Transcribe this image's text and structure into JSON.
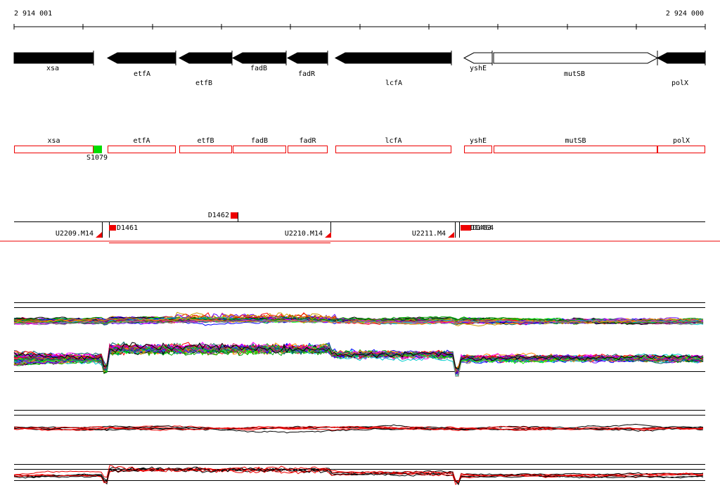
{
  "coords": {
    "start": "2 914 001",
    "end": "2 924 000"
  },
  "genes": [
    {
      "label": "xsa"
    },
    {
      "label": "etfA"
    },
    {
      "label": "etfB"
    },
    {
      "label": "fadB"
    },
    {
      "label": "fadR"
    },
    {
      "label": "lcfA"
    },
    {
      "label": "yshE"
    },
    {
      "label": "mutSB"
    },
    {
      "label": "polX"
    }
  ],
  "regions": [
    {
      "label": "xsa"
    },
    {
      "label": "etfA"
    },
    {
      "label": "etfB"
    },
    {
      "label": "fadB"
    },
    {
      "label": "fadR"
    },
    {
      "label": "lcfA"
    },
    {
      "label": "yshE"
    },
    {
      "label": "mutSB"
    },
    {
      "label": "polX"
    }
  ],
  "sites": [
    {
      "label": "S1079"
    }
  ],
  "probes": [
    {
      "label": "D1462"
    },
    {
      "label": "D1461"
    },
    {
      "label": "U2209.M14"
    },
    {
      "label": "U2210.M14"
    },
    {
      "label": "U2211.M4"
    },
    {
      "label": "D1463"
    },
    {
      "label": "D1464"
    }
  ]
}
